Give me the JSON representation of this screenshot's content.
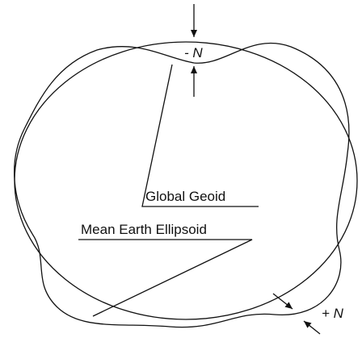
{
  "labels": {
    "minus_n": "- N",
    "global_geoid": "Global Geoid",
    "ellipsoid": "Mean Earth Ellipsoid",
    "plus_n": "+ N"
  }
}
